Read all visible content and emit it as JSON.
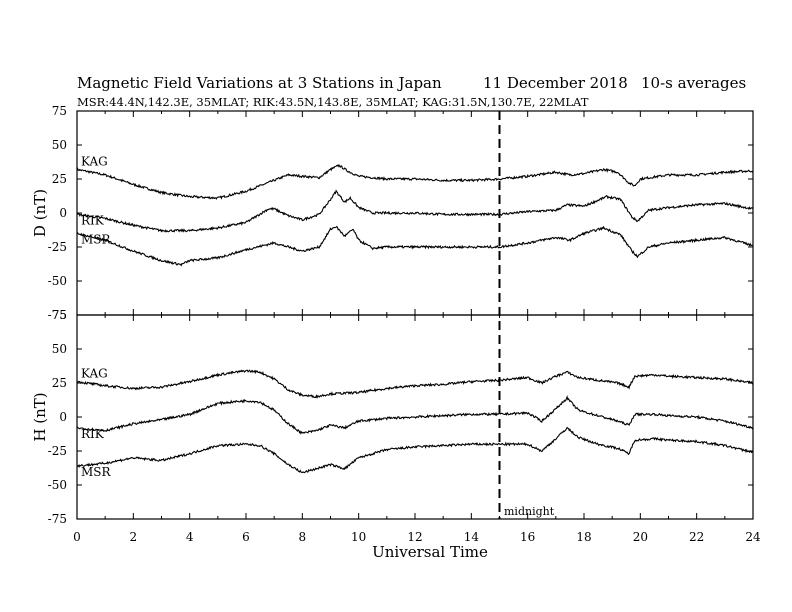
{
  "header": {
    "title": "Magnetic Field Variations at 3 Stations in Japan",
    "date": "11 December 2018",
    "averaging": "10-s averages",
    "stations": "MSR:44.4N,142.3E, 35MLAT;  RIK:43.5N,143.8E, 35MLAT;  KAG:31.5N,130.7E, 22MLAT"
  },
  "colors": {
    "line": "#000000",
    "background": "#ffffff"
  },
  "chart_data": [
    {
      "type": "line",
      "panel": "D",
      "ylabel": "D (nT)",
      "xlim": [
        0,
        24
      ],
      "ylim": [
        -75,
        75
      ],
      "yticks": [
        -75,
        -50,
        -25,
        0,
        25,
        50,
        75
      ],
      "xticks": [
        0,
        2,
        4,
        6,
        8,
        10,
        12,
        14,
        16,
        18,
        20,
        22,
        24
      ],
      "series": [
        {
          "name": "KAG",
          "points": [
            [
              0,
              32
            ],
            [
              1,
              28
            ],
            [
              2,
              21
            ],
            [
              3,
              15
            ],
            [
              4,
              12
            ],
            [
              5,
              11
            ],
            [
              6,
              16
            ],
            [
              7,
              24
            ],
            [
              7.5,
              28
            ],
            [
              8,
              27
            ],
            [
              8.6,
              26
            ],
            [
              9,
              32
            ],
            [
              9.3,
              35
            ],
            [
              9.6,
              31
            ],
            [
              10,
              27
            ],
            [
              11,
              25
            ],
            [
              12,
              25
            ],
            [
              13,
              24
            ],
            [
              14,
              24
            ],
            [
              15,
              25
            ],
            [
              16,
              27
            ],
            [
              17,
              30
            ],
            [
              17.5,
              28
            ],
            [
              18,
              29
            ],
            [
              18.7,
              32
            ],
            [
              19.2,
              30
            ],
            [
              19.6,
              22
            ],
            [
              19.8,
              20
            ],
            [
              20,
              25
            ],
            [
              21,
              28
            ],
            [
              22,
              28
            ],
            [
              23,
              30
            ],
            [
              24,
              31
            ]
          ]
        },
        {
          "name": "RIK",
          "points": [
            [
              0,
              -1
            ],
            [
              1,
              -4
            ],
            [
              2,
              -9
            ],
            [
              3,
              -13
            ],
            [
              4,
              -13
            ],
            [
              5,
              -11
            ],
            [
              6,
              -7
            ],
            [
              6.8,
              3
            ],
            [
              7,
              3
            ],
            [
              7.5,
              -2
            ],
            [
              8,
              -5
            ],
            [
              8.6,
              -1
            ],
            [
              9,
              10
            ],
            [
              9.2,
              16
            ],
            [
              9.5,
              8
            ],
            [
              9.7,
              11
            ],
            [
              10,
              4
            ],
            [
              10.5,
              0
            ],
            [
              11,
              0
            ],
            [
              12,
              0
            ],
            [
              13,
              -1
            ],
            [
              14,
              -1
            ],
            [
              15,
              -1
            ],
            [
              16,
              1
            ],
            [
              17,
              2
            ],
            [
              17.4,
              6
            ],
            [
              18,
              5
            ],
            [
              18.8,
              12
            ],
            [
              19.3,
              10
            ],
            [
              19.7,
              -3
            ],
            [
              19.9,
              -6
            ],
            [
              20.3,
              2
            ],
            [
              21,
              4
            ],
            [
              22,
              6
            ],
            [
              23,
              7
            ],
            [
              24,
              3
            ]
          ]
        },
        {
          "name": "MSR",
          "points": [
            [
              0,
              -15
            ],
            [
              1,
              -20
            ],
            [
              2,
              -28
            ],
            [
              3,
              -35
            ],
            [
              3.7,
              -38
            ],
            [
              4,
              -35
            ],
            [
              5,
              -33
            ],
            [
              6,
              -27
            ],
            [
              7,
              -22
            ],
            [
              7.5,
              -25
            ],
            [
              8,
              -28
            ],
            [
              8.6,
              -25
            ],
            [
              9,
              -12
            ],
            [
              9.2,
              -10
            ],
            [
              9.5,
              -17
            ],
            [
              9.8,
              -12
            ],
            [
              10,
              -20
            ],
            [
              10.5,
              -26
            ],
            [
              11,
              -25
            ],
            [
              12,
              -25
            ],
            [
              13,
              -25
            ],
            [
              14,
              -25
            ],
            [
              15,
              -25
            ],
            [
              16,
              -22
            ],
            [
              17,
              -18
            ],
            [
              17.5,
              -20
            ],
            [
              18,
              -15
            ],
            [
              18.7,
              -11
            ],
            [
              19.3,
              -16
            ],
            [
              19.7,
              -28
            ],
            [
              19.9,
              -32
            ],
            [
              20.3,
              -25
            ],
            [
              21,
              -22
            ],
            [
              22,
              -20
            ],
            [
              23,
              -18
            ],
            [
              24,
              -24
            ]
          ]
        }
      ]
    },
    {
      "type": "line",
      "panel": "H",
      "ylabel": "H (nT)",
      "xlabel": "Universal Time",
      "xlim": [
        0,
        24
      ],
      "ylim": [
        -75,
        75
      ],
      "yticks": [
        -75,
        -50,
        -25,
        0,
        25,
        50,
        75
      ],
      "xticks": [
        0,
        2,
        4,
        6,
        8,
        10,
        12,
        14,
        16,
        18,
        20,
        22,
        24
      ],
      "series": [
        {
          "name": "KAG",
          "points": [
            [
              0,
              26
            ],
            [
              1,
              23
            ],
            [
              2,
              21
            ],
            [
              3,
              22
            ],
            [
              4,
              26
            ],
            [
              5,
              31
            ],
            [
              6,
              34
            ],
            [
              6.5,
              33
            ],
            [
              7,
              28
            ],
            [
              7.5,
              20
            ],
            [
              8,
              16
            ],
            [
              8.5,
              15
            ],
            [
              9,
              17
            ],
            [
              10,
              18
            ],
            [
              11,
              21
            ],
            [
              12,
              23
            ],
            [
              13,
              24
            ],
            [
              14,
              26
            ],
            [
              15,
              27
            ],
            [
              16,
              29
            ],
            [
              16.5,
              25
            ],
            [
              17,
              30
            ],
            [
              17.4,
              33
            ],
            [
              17.8,
              29
            ],
            [
              18.5,
              27
            ],
            [
              19.2,
              25
            ],
            [
              19.6,
              22
            ],
            [
              19.8,
              30
            ],
            [
              20.5,
              31
            ],
            [
              21,
              30
            ],
            [
              22,
              29
            ],
            [
              23,
              28
            ],
            [
              24,
              25
            ]
          ]
        },
        {
          "name": "RIK",
          "points": [
            [
              0,
              -8
            ],
            [
              1,
              -10
            ],
            [
              2,
              -5
            ],
            [
              3,
              -2
            ],
            [
              4,
              2
            ],
            [
              5,
              10
            ],
            [
              6,
              12
            ],
            [
              6.5,
              11
            ],
            [
              7,
              5
            ],
            [
              7.5,
              -5
            ],
            [
              8,
              -12
            ],
            [
              8.5,
              -10
            ],
            [
              9,
              -6
            ],
            [
              9.5,
              -8
            ],
            [
              10,
              -3
            ],
            [
              11,
              -1
            ],
            [
              12,
              0
            ],
            [
              13,
              1
            ],
            [
              14,
              2
            ],
            [
              15,
              2
            ],
            [
              16,
              3
            ],
            [
              16.5,
              -3
            ],
            [
              17,
              6
            ],
            [
              17.4,
              14
            ],
            [
              17.8,
              5
            ],
            [
              18.5,
              1
            ],
            [
              19.2,
              -3
            ],
            [
              19.6,
              -6
            ],
            [
              19.8,
              2
            ],
            [
              20.5,
              2
            ],
            [
              21,
              1
            ],
            [
              22,
              0
            ],
            [
              23,
              -3
            ],
            [
              24,
              -8
            ]
          ]
        },
        {
          "name": "MSR",
          "points": [
            [
              0,
              -36
            ],
            [
              1,
              -34
            ],
            [
              2,
              -30
            ],
            [
              3,
              -32
            ],
            [
              4,
              -27
            ],
            [
              5,
              -21
            ],
            [
              6,
              -20
            ],
            [
              6.5,
              -21
            ],
            [
              7,
              -27
            ],
            [
              7.5,
              -35
            ],
            [
              8,
              -41
            ],
            [
              8.5,
              -38
            ],
            [
              9,
              -35
            ],
            [
              9.5,
              -38
            ],
            [
              10,
              -30
            ],
            [
              11,
              -24
            ],
            [
              12,
              -22
            ],
            [
              13,
              -21
            ],
            [
              14,
              -20
            ],
            [
              15,
              -20
            ],
            [
              16,
              -20
            ],
            [
              16.5,
              -25
            ],
            [
              17,
              -16
            ],
            [
              17.4,
              -8
            ],
            [
              17.8,
              -15
            ],
            [
              18.5,
              -20
            ],
            [
              19.2,
              -23
            ],
            [
              19.6,
              -27
            ],
            [
              19.8,
              -17
            ],
            [
              20.5,
              -16
            ],
            [
              21,
              -17
            ],
            [
              22,
              -18
            ],
            [
              23,
              -21
            ],
            [
              24,
              -26
            ]
          ]
        }
      ]
    }
  ],
  "annotation": {
    "midnight_label": "midnight",
    "midnight_ut": 15
  }
}
